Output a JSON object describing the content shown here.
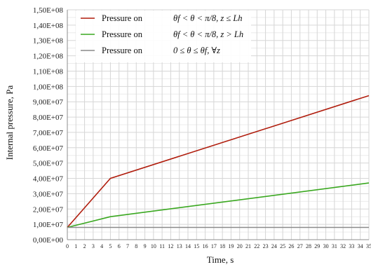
{
  "chart_data": {
    "type": "line",
    "xlabel": "Time, s",
    "ylabel": "Internal pressure, Pa",
    "xlim": [
      0,
      35
    ],
    "ylim": [
      0,
      150000000
    ],
    "x_ticks": [
      "0",
      "1",
      "2",
      "3",
      "4",
      "5",
      "6",
      "7",
      "8",
      "9",
      "10",
      "11",
      "12",
      "13",
      "14",
      "15",
      "16",
      "17",
      "18",
      "19",
      "20",
      "21",
      "22",
      "23",
      "24",
      "25",
      "26",
      "27",
      "28",
      "29",
      "30",
      "31",
      "32",
      "33",
      "34",
      "35"
    ],
    "y_ticks": [
      "0,00E+00",
      "1,00E+07",
      "2,00E+07",
      "3,00E+07",
      "4,00E+07",
      "5,00E+07",
      "6,00E+07",
      "7,00E+07",
      "8,00E+07",
      "9,00E+07",
      "1,00E+08",
      "1,10E+08",
      "1,20E+08",
      "1,30E+08",
      "1,40E+08",
      "1,50E+08"
    ],
    "grid": true,
    "legend_position": "top-left",
    "series": [
      {
        "name": "Pressure on",
        "condition": "θf < θ < π/8,   z ≤ Lh",
        "color": "#b01c0c",
        "x": [
          0,
          5,
          35
        ],
        "y": [
          8000000,
          40000000,
          94000000
        ]
      },
      {
        "name": "Pressure on",
        "condition": "θf < θ < π/8,   z > Lh",
        "color": "#3aa820",
        "x": [
          0,
          5,
          35
        ],
        "y": [
          8000000,
          15000000,
          37000000
        ]
      },
      {
        "name": "Pressure on",
        "condition": "0 ≤ θ ≤ θf,   ∀z",
        "color": "#8a8a8a",
        "x": [
          0,
          35
        ],
        "y": [
          8000000,
          8000000
        ]
      }
    ]
  }
}
